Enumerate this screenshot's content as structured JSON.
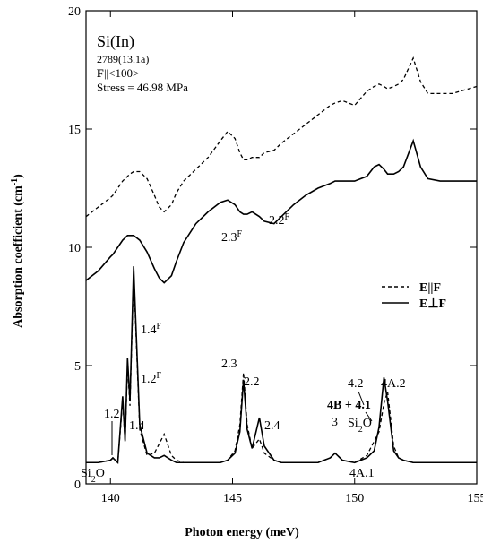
{
  "chart_data": {
    "type": "line",
    "xlabel": "Photon energy (meV)",
    "ylabel": [
      {
        "t": "Absorption coefficient (cm"
      },
      {
        "t": "-1",
        "sup": true
      },
      {
        "t": ")"
      }
    ],
    "xlim": [
      139,
      155
    ],
    "xticks": [
      140,
      145,
      150,
      155
    ],
    "ylim": [
      0,
      20
    ],
    "yticks": [
      0,
      5,
      10,
      15,
      20
    ],
    "legend": "right",
    "x": [
      139,
      139.5,
      140,
      140.1,
      140.3,
      140.5,
      140.6,
      140.7,
      140.8,
      140.95,
      141.2,
      141.5,
      141.8,
      142,
      142.2,
      142.5,
      142.7,
      143,
      143.5,
      144,
      144.5,
      144.8,
      145.1,
      145.3,
      145.45,
      145.6,
      145.8,
      146.1,
      146.3,
      146.7,
      147,
      147.5,
      148,
      148.5,
      149,
      149.2,
      149.5,
      150,
      150.5,
      150.8,
      151,
      151.2,
      151.35,
      151.6,
      151.8,
      152,
      152.4,
      152.7,
      153,
      153.5,
      154,
      155
    ],
    "series": [
      {
        "name": "E||F",
        "color": "#000000",
        "dash": true,
        "values": [
          0.9,
          0.9,
          1.0,
          1.1,
          0.9,
          3.5,
          1.8,
          5.0,
          3.3,
          8.9,
          2.3,
          1.2,
          1.3,
          1.7,
          2.1,
          1.2,
          1.0,
          0.9,
          0.9,
          0.9,
          0.9,
          1.0,
          1.4,
          2.5,
          4.7,
          2.5,
          1.5,
          1.9,
          1.3,
          1.0,
          0.9,
          0.9,
          0.9,
          0.9,
          1.1,
          1.3,
          1.0,
          0.9,
          1.2,
          1.8,
          2.2,
          3.4,
          3.9,
          1.6,
          1.1,
          1.0,
          0.9,
          0.9,
          0.9,
          0.9,
          0.9,
          0.9
        ]
      },
      {
        "name": "E⊥F",
        "color": "#000000",
        "dash": false,
        "values": [
          0.9,
          0.9,
          1.0,
          1.1,
          0.9,
          3.7,
          1.8,
          5.3,
          3.5,
          9.2,
          2.5,
          1.3,
          1.1,
          1.1,
          1.2,
          1.0,
          0.9,
          0.9,
          0.9,
          0.9,
          0.9,
          1.0,
          1.3,
          2.2,
          4.4,
          2.3,
          1.5,
          2.8,
          1.6,
          1.0,
          0.9,
          0.9,
          0.9,
          0.9,
          1.1,
          1.3,
          1.0,
          0.9,
          1.1,
          1.4,
          2.4,
          4.5,
          3.5,
          1.4,
          1.1,
          1.0,
          0.9,
          0.9,
          0.9,
          0.9,
          0.9,
          0.9
        ]
      },
      {
        "color": "#000000",
        "dash": true,
        "values": [
          11.3,
          11.7,
          12.1,
          12.2,
          12.5,
          12.8,
          12.9,
          13.0,
          13.1,
          13.2,
          13.2,
          12.9,
          12.2,
          11.7,
          11.5,
          11.8,
          12.3,
          12.8,
          13.3,
          13.8,
          14.5,
          14.9,
          14.6,
          14.0,
          13.7,
          13.7,
          13.8,
          13.8,
          14.0,
          14.1,
          14.4,
          14.8,
          15.2,
          15.6,
          16.0,
          16.1,
          16.2,
          16.0,
          16.6,
          16.8,
          16.9,
          16.8,
          16.7,
          16.8,
          16.9,
          17.1,
          18.0,
          17.0,
          16.5,
          16.5,
          16.5,
          16.8
        ]
      },
      {
        "color": "#000000",
        "dash": false,
        "values": [
          8.6,
          9.0,
          9.6,
          9.7,
          10.0,
          10.3,
          10.4,
          10.5,
          10.5,
          10.5,
          10.3,
          9.8,
          9.1,
          8.7,
          8.5,
          8.8,
          9.4,
          10.2,
          11.0,
          11.5,
          11.9,
          12.0,
          11.8,
          11.5,
          11.4,
          11.4,
          11.5,
          11.3,
          11.1,
          11.0,
          11.3,
          11.8,
          12.2,
          12.5,
          12.7,
          12.8,
          12.8,
          12.8,
          13.0,
          13.4,
          13.5,
          13.3,
          13.1,
          13.1,
          13.2,
          13.4,
          14.5,
          13.4,
          12.9,
          12.8,
          12.8,
          12.8
        ]
      }
    ],
    "annotations": [
      [
        {
          "t": "Si(In)"
        }
      ],
      [
        {
          "t": "2789(13.1a)"
        }
      ],
      [
        {
          "t": "F",
          "bold": true
        },
        {
          "t": "||<100>"
        }
      ],
      [
        {
          "t": "Stress = 46.98 MPa"
        }
      ],
      [
        {
          "t": "1.4"
        },
        {
          "t": "F",
          "sup": true
        }
      ],
      [
        {
          "t": "1.2"
        },
        {
          "t": "F",
          "sup": true
        }
      ],
      [
        {
          "t": "2.3"
        },
        {
          "t": "F",
          "sup": true
        }
      ],
      [
        {
          "t": "2.2"
        },
        {
          "t": "F",
          "sup": true
        }
      ],
      [
        {
          "t": "2.3"
        }
      ],
      [
        {
          "t": "2.2"
        }
      ],
      [
        {
          "t": "2.4"
        }
      ],
      [
        {
          "t": "3"
        }
      ],
      [
        {
          "t": "Si"
        },
        {
          "t": "2",
          "sub": true
        },
        {
          "t": "O"
        }
      ],
      [
        {
          "t": "4.2"
        }
      ],
      [
        {
          "t": "4A.2"
        }
      ],
      [
        {
          "t": "4B + 4.1",
          "bold": true
        }
      ],
      [
        {
          "t": "4A.1"
        }
      ],
      [
        {
          "t": "1.2"
        }
      ],
      [
        {
          "t": "1.4"
        }
      ],
      [
        {
          "t": "Si"
        },
        {
          "t": "2",
          "sub": true
        },
        {
          "t": "O"
        }
      ]
    ]
  }
}
